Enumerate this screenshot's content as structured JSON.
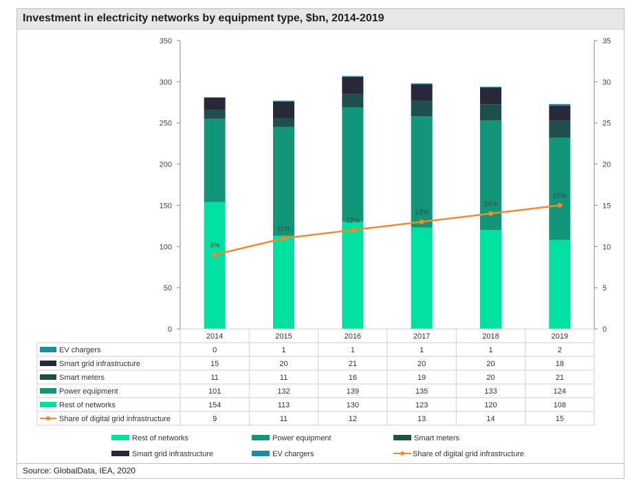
{
  "title": "Investment in electricity networks by equipment type, $bn, 2014-2019",
  "source": "Source: GlobalData, IEA, 2020",
  "chart_data": {
    "type": "bar",
    "stacked": true,
    "categories": [
      "2014",
      "2015",
      "2016",
      "2017",
      "2018",
      "2019"
    ],
    "series": [
      {
        "name": "Rest of networks",
        "values": [
          154,
          113,
          130,
          123,
          120,
          108
        ],
        "color": "#00e0a0"
      },
      {
        "name": "Power equipment",
        "values": [
          101,
          132,
          139,
          135,
          133,
          124
        ],
        "color": "#11967a"
      },
      {
        "name": "Smart meters",
        "values": [
          11,
          11,
          16,
          19,
          20,
          21
        ],
        "color": "#1f4f4a"
      },
      {
        "name": "Smart grid infrastructure",
        "values": [
          15,
          20,
          21,
          20,
          20,
          18
        ],
        "color": "#28283a"
      },
      {
        "name": "EV chargers",
        "values": [
          0,
          1,
          1,
          1,
          1,
          2
        ],
        "color": "#1a8ea0"
      }
    ],
    "line_series": {
      "name": "Share of digital grid infrastructure",
      "values": [
        9,
        11,
        12,
        13,
        14,
        15
      ],
      "labels": [
        "9%",
        "11%",
        "12%",
        "13%",
        "14%",
        "15%"
      ],
      "axis": "right",
      "color": "#f08a2c"
    },
    "table_rows": [
      {
        "name": "EV chargers",
        "values": [
          "0",
          "1",
          "1",
          "1",
          "1",
          "2"
        ],
        "color": "#1a8ea0",
        "kind": "box"
      },
      {
        "name": "Smart grid infrastructure",
        "values": [
          "15",
          "20",
          "21",
          "20",
          "20",
          "18"
        ],
        "color": "#28283a",
        "kind": "box"
      },
      {
        "name": "Smart meters",
        "values": [
          "11",
          "11",
          "16",
          "19",
          "20",
          "21"
        ],
        "color": "#1f4f4a",
        "kind": "box"
      },
      {
        "name": "Power equipment",
        "values": [
          "101",
          "132",
          "139",
          "135",
          "133",
          "124"
        ],
        "color": "#11967a",
        "kind": "box"
      },
      {
        "name": "Rest of networks",
        "values": [
          "154",
          "113",
          "130",
          "123",
          "120",
          "108"
        ],
        "color": "#00e0a0",
        "kind": "box"
      },
      {
        "name": "Share of digital grid infrastructure",
        "values": [
          "9",
          "11",
          "12",
          "13",
          "14",
          "15"
        ],
        "color": "#f08a2c",
        "kind": "line"
      }
    ],
    "left_axis": {
      "ticks": [
        "0",
        "50",
        "100",
        "150",
        "200",
        "250",
        "300",
        "350"
      ],
      "min": 0,
      "max": 350
    },
    "right_axis": {
      "ticks": [
        "0",
        "5",
        "10",
        "15",
        "20",
        "25",
        "30",
        "35"
      ],
      "min": 0,
      "max": 35
    },
    "legend": {
      "placement": "bottom",
      "items": [
        {
          "name": "Rest of networks",
          "color": "#00e0a0",
          "kind": "box"
        },
        {
          "name": "Power equipment",
          "color": "#11967a",
          "kind": "box"
        },
        {
          "name": "Smart meters",
          "color": "#1f4f4a",
          "kind": "box"
        },
        {
          "name": "Smart grid infrastructure",
          "color": "#28283a",
          "kind": "box"
        },
        {
          "name": "EV chargers",
          "color": "#1a8ea0",
          "kind": "box"
        },
        {
          "name": "Share of digital grid infrastructure",
          "color": "#f08a2c",
          "kind": "line"
        }
      ]
    },
    "grid": false
  }
}
